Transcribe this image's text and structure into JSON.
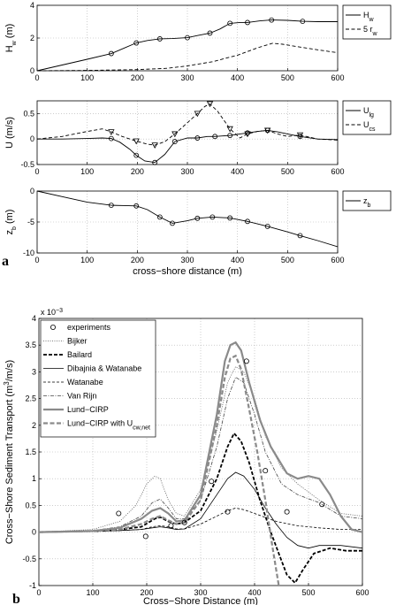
{
  "panel_labels": [
    "a",
    "b"
  ],
  "chart_data": [
    {
      "type": "line",
      "ylabel_main": "H",
      "ylabel_sub": "w",
      "ylabel_tail": " (m)",
      "xlim": [
        0,
        600
      ],
      "ylim": [
        0,
        4
      ],
      "xticks": [
        "0",
        "100",
        "200",
        "300",
        "400",
        "500",
        "600"
      ],
      "yticks": [
        "0",
        "2",
        "4"
      ],
      "grid": true,
      "legend_position": "right-outside",
      "series": [
        {
          "name": "H",
          "name_sub": "w",
          "style": "solid",
          "color": "#000000",
          "markers": [
            148,
            198,
            245,
            300,
            345,
            385,
            420,
            468,
            530
          ],
          "x": [
            0,
            50,
            100,
            148,
            175,
            198,
            220,
            245,
            270,
            300,
            320,
            345,
            365,
            385,
            405,
            420,
            445,
            468,
            500,
            530,
            560,
            600
          ],
          "y": [
            0,
            0.35,
            0.7,
            1.05,
            1.4,
            1.7,
            1.85,
            1.95,
            1.97,
            2.02,
            2.15,
            2.3,
            2.55,
            2.9,
            2.95,
            2.95,
            3.05,
            3.1,
            3.08,
            3.02,
            3.0,
            3.0
          ]
        },
        {
          "name": "5 r",
          "name_sub": "w",
          "style": "dashed",
          "color": "#000000",
          "x": [
            0,
            100,
            200,
            260,
            300,
            350,
            400,
            440,
            470,
            490,
            530,
            560,
            600
          ],
          "y": [
            0,
            0.02,
            0.07,
            0.15,
            0.3,
            0.55,
            0.95,
            1.4,
            1.68,
            1.62,
            1.42,
            1.28,
            1.1
          ]
        }
      ]
    },
    {
      "type": "line",
      "ylabel_main": "U (m/s)",
      "xlim": [
        0,
        600
      ],
      "ylim": [
        -0.5,
        0.75
      ],
      "xticks": [
        "0",
        "100",
        "200",
        "300",
        "400",
        "500",
        "600"
      ],
      "yticks": [
        "-0.5",
        "0",
        "0.5"
      ],
      "grid": true,
      "legend_position": "right-outside",
      "series": [
        {
          "name": "U",
          "name_sub": "lg",
          "style": "solid",
          "color": "#000000",
          "markers": [
            148,
            198,
            235,
            275,
            320,
            355,
            385,
            420,
            460,
            525
          ],
          "x": [
            0,
            50,
            100,
            130,
            148,
            165,
            185,
            198,
            215,
            235,
            255,
            275,
            300,
            320,
            340,
            355,
            370,
            385,
            405,
            420,
            440,
            460,
            480,
            500,
            525,
            560,
            600
          ],
          "y": [
            0,
            0,
            0.01,
            0.02,
            0.01,
            -0.06,
            -0.2,
            -0.32,
            -0.43,
            -0.46,
            -0.3,
            -0.05,
            0.02,
            0.02,
            0.05,
            0.05,
            0.06,
            0.07,
            0.1,
            0.12,
            0.15,
            0.17,
            0.14,
            0.1,
            0.05,
            0.0,
            -0.01
          ]
        },
        {
          "name": "U",
          "name_sub": "cs",
          "style": "dashed",
          "color": "#000000",
          "markers": [
            148,
            198,
            235,
            275,
            320,
            345,
            385,
            420,
            460,
            525
          ],
          "x": [
            0,
            50,
            100,
            130,
            148,
            170,
            198,
            220,
            235,
            255,
            275,
            300,
            320,
            335,
            345,
            360,
            385,
            405,
            420,
            440,
            460,
            480,
            500,
            525,
            560,
            600
          ],
          "y": [
            0,
            0.05,
            0.15,
            0.2,
            0.14,
            0.05,
            -0.04,
            -0.1,
            -0.12,
            -0.05,
            0.1,
            0.32,
            0.5,
            0.64,
            0.69,
            0.55,
            0.2,
            0.02,
            0.1,
            0.15,
            0.17,
            0.1,
            0.05,
            0.08,
            0.0,
            -0.02
          ]
        }
      ]
    },
    {
      "type": "line",
      "ylabel_main": "z",
      "ylabel_sub": "b",
      "ylabel_tail": " (m)",
      "xlabel": "cross−shore distance (m)",
      "xlim": [
        0,
        600
      ],
      "ylim": [
        -10,
        0
      ],
      "xticks": [
        "0",
        "100",
        "200",
        "300",
        "400",
        "500",
        "600"
      ],
      "yticks": [
        "-10",
        "-5",
        "0"
      ],
      "grid": true,
      "legend_position": "right-outside",
      "series": [
        {
          "name": "z",
          "name_sub": "b",
          "style": "solid",
          "color": "#000000",
          "markers": [
            148,
            198,
            245,
            270,
            320,
            350,
            385,
            420,
            460,
            525
          ],
          "x": [
            0,
            50,
            100,
            148,
            175,
            198,
            220,
            245,
            270,
            300,
            320,
            350,
            385,
            420,
            460,
            500,
            525,
            560,
            600
          ],
          "y": [
            0,
            -0.9,
            -1.8,
            -2.3,
            -2.35,
            -2.4,
            -3.0,
            -4.2,
            -5.2,
            -4.8,
            -4.4,
            -4.2,
            -4.35,
            -4.9,
            -5.7,
            -6.6,
            -7.2,
            -8.0,
            -9.0
          ]
        }
      ]
    },
    {
      "type": "line",
      "ylabel": "Cross−Shore Sediment Transport (m",
      "ylabel_sup": "3",
      "ylabel_tail": "/m/s)",
      "xlabel": "Cross−Shore Distance (m)",
      "scale_note": "x 10",
      "scale_exp": "−3",
      "xlim": [
        0,
        600
      ],
      "ylim": [
        -1,
        4
      ],
      "xticks": [
        "0",
        "100",
        "200",
        "300",
        "400",
        "500",
        "600"
      ],
      "yticks": [
        "-1",
        "-0.5",
        "0",
        "0.5",
        "1",
        "1.5",
        "2",
        "2.5",
        "3",
        "3.5",
        "4"
      ],
      "grid": true,
      "legend_position": "top-left",
      "experiments": {
        "name": "experiments",
        "x": [
          148,
          198,
          245,
          270,
          320,
          350,
          385,
          420,
          460,
          525
        ],
        "y": [
          0.35,
          -0.08,
          0.12,
          0.18,
          0.95,
          0.38,
          3.2,
          1.15,
          0.38,
          0.52
        ]
      },
      "series": [
        {
          "name": "Bijker",
          "color": "#555555",
          "width": 0.8,
          "dash": "1 1.5",
          "x": [
            0,
            100,
            150,
            180,
            200,
            215,
            225,
            240,
            255,
            270,
            300,
            330,
            350,
            365,
            380,
            400,
            420,
            450,
            480,
            520,
            560,
            600
          ],
          "y": [
            0,
            0.05,
            0.2,
            0.5,
            0.9,
            1.05,
            1.0,
            0.6,
            0.35,
            0.3,
            0.8,
            1.9,
            2.8,
            3.1,
            3.0,
            2.5,
            1.8,
            1.2,
            0.9,
            0.6,
            0.35,
            0.3
          ]
        },
        {
          "name": "Bailard",
          "color": "#000000",
          "width": 1.8,
          "dash": "4 2",
          "x": [
            0,
            100,
            150,
            190,
            215,
            225,
            240,
            255,
            270,
            300,
            330,
            350,
            362,
            375,
            390,
            410,
            430,
            445,
            460,
            475,
            490,
            510,
            540,
            570,
            600
          ],
          "y": [
            0,
            0.02,
            0.05,
            0.1,
            0.25,
            0.28,
            0.2,
            0.15,
            0.18,
            0.4,
            1.0,
            1.6,
            1.85,
            1.7,
            1.3,
            0.6,
            0.0,
            -0.4,
            -0.8,
            -0.95,
            -0.7,
            -0.4,
            -0.3,
            -0.35,
            -0.35
          ]
        },
        {
          "name": "Dibajnia & Watanabe",
          "color": "#000000",
          "width": 0.8,
          "dash": "",
          "x": [
            0,
            100,
            150,
            190,
            210,
            225,
            240,
            255,
            270,
            300,
            330,
            350,
            365,
            380,
            400,
            420,
            440,
            460,
            480,
            500,
            520,
            560,
            600
          ],
          "y": [
            0,
            0.01,
            0.03,
            0.05,
            0.08,
            0.1,
            0.08,
            0.05,
            0.06,
            0.25,
            0.7,
            1.0,
            1.12,
            1.05,
            0.8,
            0.45,
            0.15,
            -0.1,
            -0.25,
            -0.3,
            -0.25,
            -0.25,
            -0.3
          ]
        },
        {
          "name": "Watanabe",
          "color": "#000000",
          "width": 0.8,
          "dash": "3 2",
          "x": [
            0,
            100,
            150,
            190,
            210,
            225,
            240,
            255,
            270,
            300,
            330,
            350,
            365,
            380,
            400,
            440,
            480,
            520,
            560,
            600
          ],
          "y": [
            0,
            0.01,
            0.03,
            0.05,
            0.1,
            0.12,
            0.1,
            0.06,
            0.06,
            0.15,
            0.3,
            0.4,
            0.45,
            0.42,
            0.35,
            0.2,
            0.12,
            0.08,
            0.05,
            0.05
          ]
        },
        {
          "name": "Van Rijn",
          "color": "#444444",
          "width": 0.8,
          "dash": "4 1.5 1 1.5",
          "x": [
            0,
            100,
            150,
            190,
            210,
            225,
            240,
            255,
            270,
            300,
            330,
            350,
            365,
            380,
            400,
            420,
            450,
            480,
            520,
            560,
            600
          ],
          "y": [
            0,
            0.03,
            0.1,
            0.3,
            0.55,
            0.62,
            0.45,
            0.25,
            0.25,
            0.6,
            1.6,
            2.5,
            2.9,
            2.8,
            2.2,
            1.5,
            0.9,
            0.7,
            0.55,
            0.3,
            0.25
          ]
        },
        {
          "name": "Lund−CIRP",
          "color": "#8a8a8a",
          "width": 2.2,
          "dash": "",
          "x": [
            0,
            100,
            150,
            190,
            210,
            225,
            240,
            255,
            270,
            300,
            330,
            345,
            355,
            365,
            375,
            390,
            410,
            430,
            460,
            480,
            500,
            520,
            540,
            560,
            580,
            600
          ],
          "y": [
            0,
            0.02,
            0.08,
            0.25,
            0.4,
            0.45,
            0.35,
            0.2,
            0.22,
            0.7,
            2.2,
            3.2,
            3.5,
            3.55,
            3.4,
            2.8,
            2.1,
            1.6,
            1.1,
            1.0,
            1.05,
            1.0,
            0.7,
            0.3,
            0.05,
            0.0
          ]
        },
        {
          "name": "Lund−CIRP with U",
          "name_sub": "cw,net",
          "color": "#8a8a8a",
          "width": 2.2,
          "dash": "5 2.5",
          "x": [
            0,
            100,
            150,
            190,
            210,
            225,
            240,
            255,
            270,
            300,
            330,
            345,
            355,
            365,
            375,
            390,
            405,
            420,
            432,
            440,
            445
          ],
          "y": [
            0,
            0.02,
            0.05,
            0.15,
            0.25,
            0.3,
            0.22,
            0.15,
            0.18,
            0.6,
            2.0,
            2.9,
            3.25,
            3.3,
            3.05,
            2.3,
            1.5,
            0.6,
            -0.2,
            -0.7,
            -1.0
          ]
        }
      ]
    }
  ]
}
